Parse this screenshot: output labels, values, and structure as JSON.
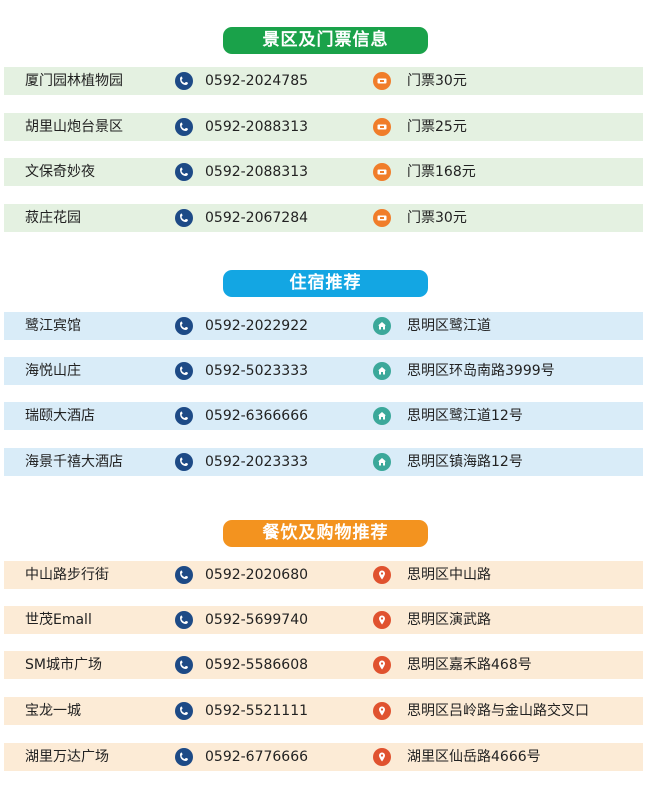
{
  "colors": {
    "green": "#1aa24a",
    "blue": "#13a6e3",
    "orange": "#f3931f",
    "green_row": "#e4f1e1",
    "blue_row": "#d9ecf8",
    "orange_row": "#fcebd6",
    "phone_icon": "#1d4a86",
    "ticket_icon": "#f07d2a",
    "home_icon": "#3ba89a",
    "pin_icon": "#e0522f"
  },
  "sections": [
    {
      "title": "景区及门票信息",
      "icon": "ticket-icon",
      "rows": [
        {
          "name": "厦门园林植物园",
          "phone": "0592-2024785",
          "info": "门票30元"
        },
        {
          "name": "胡里山炮台景区",
          "phone": "0592-2088313",
          "info": "门票25元"
        },
        {
          "name": "文保奇妙夜",
          "phone": "0592-2088313",
          "info": "门票168元"
        },
        {
          "name": "菽庄花园",
          "phone": "0592-2067284",
          "info": "门票30元"
        }
      ]
    },
    {
      "title": "住宿推荐",
      "icon": "home-icon",
      "rows": [
        {
          "name": "鹭江宾馆",
          "phone": "0592-2022922",
          "info": "思明区鹭江道"
        },
        {
          "name": "海悦山庄",
          "phone": "0592-5023333",
          "info": "思明区环岛南路3999号"
        },
        {
          "name": "瑞颐大酒店",
          "phone": "0592-6366666",
          "info": "思明区鹭江道12号"
        },
        {
          "name": "海景千禧大酒店",
          "phone": "0592-2023333",
          "info": "思明区镇海路12号"
        }
      ]
    },
    {
      "title": "餐饮及购物推荐",
      "icon": "location-pin-icon",
      "rows": [
        {
          "name": "中山路步行街",
          "phone": "0592-2020680",
          "info": "思明区中山路"
        },
        {
          "name": "世茂Emall",
          "phone": "0592-5699740",
          "info": "思明区演武路"
        },
        {
          "name": "SM城市广场",
          "phone": "0592-5586608",
          "info": "思明区嘉禾路468号"
        },
        {
          "name": "宝龙一城",
          "phone": "0592-5521111",
          "info": "思明区吕岭路与金山路交叉口"
        },
        {
          "name": "湖里万达广场",
          "phone": "0592-6776666",
          "info": "湖里区仙岳路4666号"
        }
      ]
    }
  ]
}
